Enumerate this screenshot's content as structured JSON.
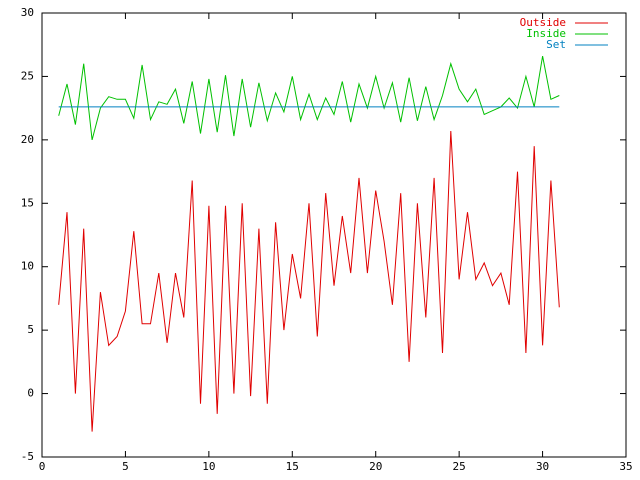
{
  "chart_data": {
    "type": "line",
    "xlim": [
      0,
      35
    ],
    "xticks": [
      0,
      5,
      10,
      15,
      20,
      25,
      30,
      35
    ],
    "ylim": [
      -5,
      30
    ],
    "yticks": [
      -5,
      0,
      5,
      10,
      15,
      20,
      25,
      30
    ],
    "legend": "top-right",
    "series": [
      {
        "name": "Outside",
        "color": "#e00000",
        "x": [
          1,
          1.5,
          2,
          2.5,
          3,
          3.5,
          4,
          4.5,
          5,
          5.5,
          6,
          6.5,
          7,
          7.5,
          8,
          8.5,
          9,
          9.5,
          10,
          10.5,
          11,
          11.5,
          12,
          12.5,
          13,
          13.5,
          14,
          14.5,
          15,
          15.5,
          16,
          16.5,
          17,
          17.5,
          18,
          18.5,
          19,
          19.5,
          20,
          20.5,
          21,
          21.5,
          22,
          22.5,
          23,
          23.5,
          24,
          24.5,
          25,
          25.5,
          26,
          26.5,
          27,
          27.5,
          28,
          28.5,
          29,
          29.5,
          30,
          30.5,
          31
        ],
        "values": [
          7,
          14.3,
          0,
          13,
          -3,
          8,
          3.8,
          4.5,
          6.5,
          12.8,
          5.5,
          5.5,
          9.5,
          4,
          9.5,
          6,
          16.8,
          -0.8,
          14.8,
          -1.6,
          14.8,
          0,
          15,
          -0.2,
          13,
          -0.8,
          13.5,
          5,
          11,
          7.5,
          15,
          4.5,
          15.8,
          8.5,
          14,
          9.5,
          17,
          9.5,
          16,
          12,
          7,
          15.8,
          2.5,
          15,
          6,
          17,
          3.2,
          20.7,
          9,
          14.3,
          9,
          10.3,
          8.5,
          9.5,
          7,
          17.5,
          3.2,
          19.5,
          3.8,
          16.8,
          6.8
        ]
      },
      {
        "name": "Inside",
        "color": "#00c000",
        "x": [
          1,
          1.5,
          2,
          2.5,
          3,
          3.5,
          4,
          4.5,
          5,
          5.5,
          6,
          6.5,
          7,
          7.5,
          8,
          8.5,
          9,
          9.5,
          10,
          10.5,
          11,
          11.5,
          12,
          12.5,
          13,
          13.5,
          14,
          14.5,
          15,
          15.5,
          16,
          16.5,
          17,
          17.5,
          18,
          18.5,
          19,
          19.5,
          20,
          20.5,
          21,
          21.5,
          22,
          22.5,
          23,
          23.5,
          24,
          24.5,
          25,
          25.5,
          26,
          26.5,
          27,
          27.5,
          28,
          28.5,
          29,
          29.5,
          30,
          30.5,
          31
        ],
        "values": [
          21.9,
          24.4,
          21.2,
          26,
          20,
          22.5,
          23.4,
          23.2,
          23.2,
          21.7,
          25.9,
          21.6,
          23,
          22.8,
          24,
          21.3,
          24.6,
          20.5,
          24.8,
          20.6,
          25.1,
          20.3,
          24.8,
          21,
          24.5,
          21.5,
          23.7,
          22.2,
          25,
          21.6,
          23.6,
          21.6,
          23.3,
          22,
          24.6,
          21.4,
          24.4,
          22.5,
          25,
          22.5,
          24.5,
          21.4,
          24.9,
          21.5,
          24.2,
          21.6,
          23.5,
          26,
          24,
          23,
          24,
          22,
          22.3,
          22.6,
          23.3,
          22.5,
          25,
          22.6,
          26.6,
          23.2,
          23.5
        ]
      },
      {
        "name": "Set",
        "color": "#0080c0",
        "x": [
          1,
          31
        ],
        "values": [
          22.6,
          22.6
        ]
      }
    ]
  }
}
